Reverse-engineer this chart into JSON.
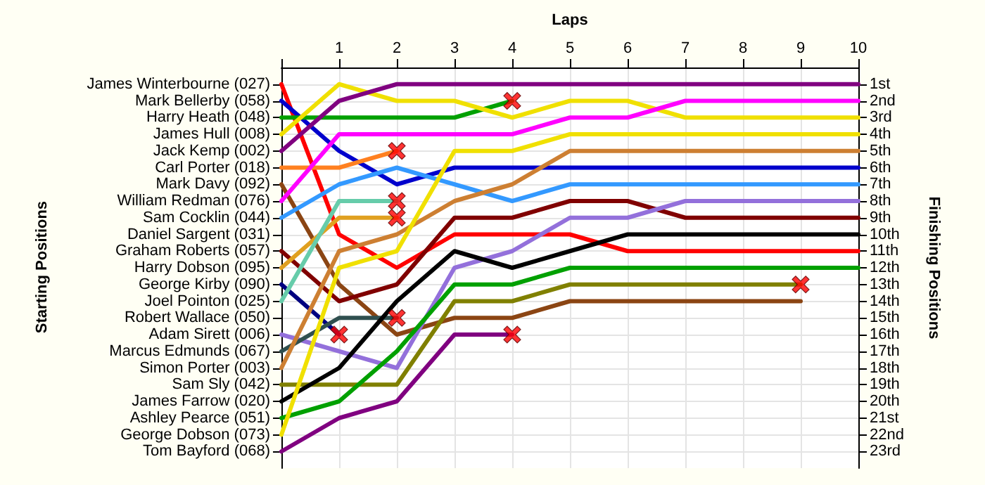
{
  "chart_data": {
    "type": "line",
    "xlabel": "Laps",
    "y2label": "Finishing Positions",
    "annotations": [
      "Starting Positions"
    ],
    "x": [
      0,
      1,
      2,
      3,
      4,
      5,
      6,
      7,
      8,
      9,
      10
    ],
    "xlim": [
      0,
      10
    ],
    "xticks": [
      {
        "value": 0,
        "label": null
      },
      1,
      2,
      3,
      4,
      5,
      6,
      7,
      8,
      9,
      10
    ],
    "y_categories": [
      "James Winterbourne (027)",
      "Mark Bellerby (058)",
      "Harry Heath (048)",
      "James Hull (008)",
      "Jack Kemp (002)",
      "Carl Porter (018)",
      "Mark Davy (092)",
      "William Redman (076)",
      "Sam Cocklin (044)",
      "Daniel Sargent (031)",
      "Graham Roberts (057)",
      "Harry Dobson (095)",
      "George Kirby (090)",
      "Joel Pointon (025)",
      "Robert Wallace (050)",
      "Adam Sirett (006)",
      "Marcus Edmunds (067)",
      "Simon Porter (003)",
      "Sam Sly (042)",
      "James Farrow (020)",
      "Ashley Pearce (051)",
      "George Dobson (073)",
      "Tom Bayford (068)"
    ],
    "y2lim": [
      24,
      0
    ],
    "y2ticks": [
      {
        "value": 1,
        "label": "1st"
      },
      {
        "value": 2,
        "label": "2nd"
      },
      {
        "value": 3,
        "label": "3rd"
      },
      {
        "value": 4,
        "label": "4th"
      },
      {
        "value": 5,
        "label": "5th"
      },
      {
        "value": 6,
        "label": "6th"
      },
      {
        "value": 7,
        "label": "7th"
      },
      {
        "value": 8,
        "label": "8th"
      },
      {
        "value": 9,
        "label": "9th"
      },
      {
        "value": 10,
        "label": "10th"
      },
      {
        "value": 11,
        "label": "11th"
      },
      {
        "value": 12,
        "label": "12th"
      },
      {
        "value": 13,
        "label": "13th"
      },
      {
        "value": 14,
        "label": "14th"
      },
      {
        "value": 15,
        "label": "15th"
      },
      {
        "value": 16,
        "label": "16th"
      },
      {
        "value": 17,
        "label": "17th"
      },
      {
        "value": 18,
        "label": "18th"
      },
      {
        "value": 19,
        "label": "19th"
      },
      {
        "value": 20,
        "label": "20th"
      },
      {
        "value": 21,
        "label": "21st"
      },
      {
        "value": 22,
        "label": "22nd"
      },
      {
        "value": 23,
        "label": "23rd"
      }
    ],
    "grid": true,
    "marker": "none",
    "series": [
      {
        "axis": "y2",
        "color": "#ff0000",
        "values": [
          1,
          10,
          12,
          10,
          10,
          10,
          11,
          11,
          11,
          11,
          11
        ]
      },
      {
        "axis": "y2",
        "color": "#0000cc",
        "values": [
          2,
          5,
          7,
          6,
          6,
          6,
          6,
          6,
          6,
          6,
          6
        ]
      },
      {
        "axis": "y2",
        "color": "#00a000",
        "values": [
          3,
          3,
          3,
          3,
          2,
          null,
          null,
          null,
          null,
          null,
          null
        ]
      },
      {
        "axis": "y2",
        "color": "#f0e000",
        "values": [
          4,
          1,
          2,
          2,
          3,
          2,
          2,
          3,
          3,
          3,
          3
        ]
      },
      {
        "axis": "y2",
        "color": "#800080",
        "values": [
          5,
          2,
          1,
          1,
          1,
          1,
          1,
          1,
          1,
          1,
          1
        ]
      },
      {
        "axis": "y2",
        "color": "#ff8020",
        "values": [
          6,
          6,
          5,
          null,
          null,
          null,
          null,
          null,
          null,
          null,
          null
        ]
      },
      {
        "axis": "y2",
        "color": "#8b4513",
        "values": [
          7,
          13,
          16,
          15,
          15,
          14,
          14,
          14,
          14,
          14,
          null
        ]
      },
      {
        "axis": "y2",
        "color": "#ff00ff",
        "values": [
          8,
          4,
          4,
          4,
          4,
          3,
          3,
          2,
          2,
          2,
          2
        ]
      },
      {
        "axis": "y2",
        "color": "#3399ff",
        "values": [
          9,
          7,
          6,
          7,
          8,
          7,
          7,
          7,
          7,
          7,
          7
        ]
      },
      {
        "axis": "y2",
        "color": "#800000",
        "values": [
          11,
          14,
          13,
          9,
          9,
          8,
          8,
          9,
          9,
          9,
          9
        ]
      },
      {
        "axis": "y2",
        "color": "#e0a020",
        "values": [
          12,
          9,
          9,
          null,
          null,
          null,
          null,
          null,
          null,
          null,
          null
        ]
      },
      {
        "axis": "y2",
        "color": "#000080",
        "values": [
          13,
          16,
          null,
          null,
          null,
          null,
          null,
          null,
          null,
          null,
          null
        ]
      },
      {
        "axis": "y2",
        "color": "#66ccaa",
        "values": [
          14,
          8,
          8,
          null,
          null,
          null,
          null,
          null,
          null,
          null,
          null
        ]
      },
      {
        "axis": "y2",
        "color": "#9370db",
        "values": [
          16,
          17,
          18,
          12,
          11,
          9,
          9,
          8,
          8,
          8,
          8
        ]
      },
      {
        "axis": "y2",
        "color": "#2f4f4f",
        "values": [
          17,
          15,
          15,
          null,
          null,
          null,
          null,
          null,
          null,
          null,
          null
        ]
      },
      {
        "axis": "y2",
        "color": "#cd7f32",
        "values": [
          18,
          11,
          10,
          8,
          7,
          5,
          5,
          5,
          5,
          5,
          5
        ]
      },
      {
        "axis": "y2",
        "color": "#808000",
        "values": [
          19,
          19,
          19,
          14,
          14,
          13,
          13,
          13,
          13,
          13,
          null
        ]
      },
      {
        "axis": "y2",
        "color": "#000000",
        "values": [
          20,
          18,
          14,
          11,
          12,
          11,
          10,
          10,
          10,
          10,
          10
        ]
      },
      {
        "axis": "y2",
        "color": "#00a000",
        "values": [
          21,
          20,
          17,
          13,
          13,
          12,
          12,
          12,
          12,
          12,
          12
        ]
      },
      {
        "axis": "y2",
        "color": "#f0e000",
        "values": [
          22,
          12,
          11,
          5,
          5,
          4,
          4,
          4,
          4,
          4,
          4
        ]
      },
      {
        "axis": "y2",
        "color": "#800080",
        "values": [
          23,
          21,
          20,
          16,
          16,
          null,
          null,
          null,
          null,
          null,
          null
        ]
      },
      {
        "axis": "y2",
        "type": "scatter",
        "marker": "cross",
        "color": "#ff0000",
        "x": [
          4,
          2,
          2,
          1,
          2,
          2,
          9,
          4
        ],
        "values": [
          2,
          5,
          9,
          16,
          8,
          15,
          13,
          16
        ]
      }
    ]
  }
}
